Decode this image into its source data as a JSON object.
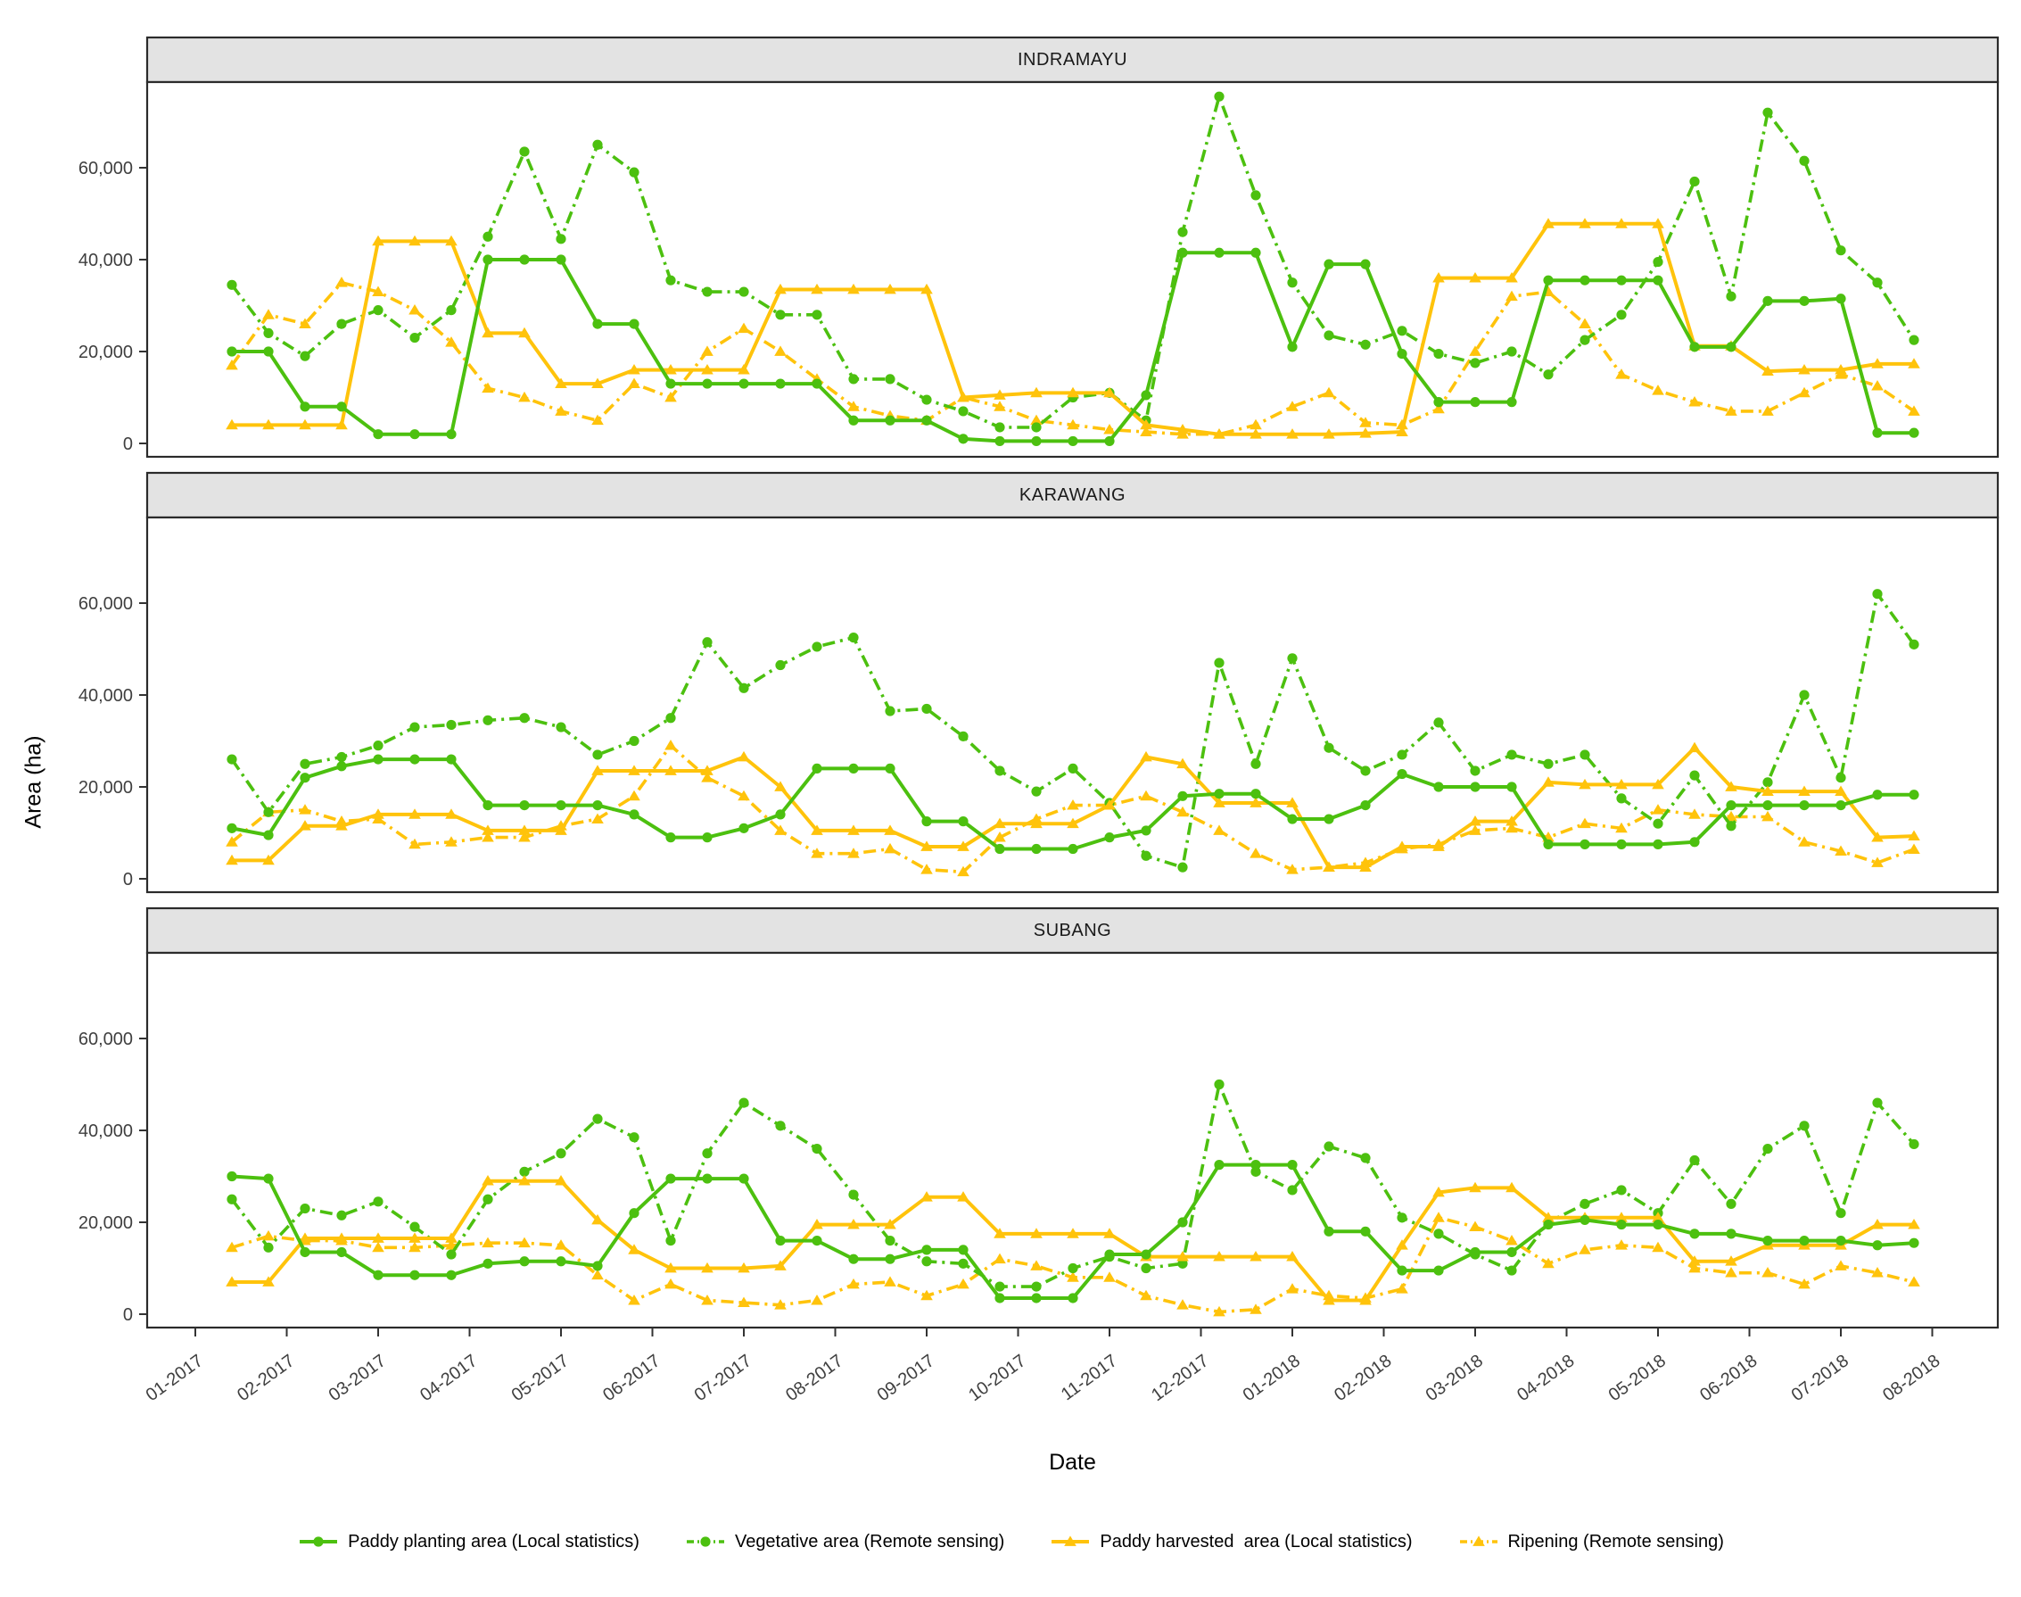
{
  "figure": {
    "y_axis_title": "Area (ha)",
    "x_axis_title": "Date"
  },
  "legend": {
    "position": "bottom",
    "items": [
      {
        "label": "Paddy planting area (Local statistics)",
        "series": "planting"
      },
      {
        "label": "Vegetative area (Remote sensing)",
        "series": "vegetative"
      },
      {
        "label": "Paddy harvested  area (Local statistics)",
        "series": "harvested"
      },
      {
        "label": "Ripening (Remote sensing)",
        "series": "ripening"
      }
    ]
  },
  "colors": {
    "green": "#4cc00f",
    "yellow": "#ffc30b",
    "strip_bg": "#e3e3e3",
    "panel_border": "#2b2b2b",
    "tick_text": "#3f3f3f",
    "axis_text": "#000000"
  },
  "chart_data": {
    "type": "line",
    "title": "",
    "xlabel": "Date",
    "ylabel": "Area (ha)",
    "grid": "off",
    "legend_position": "bottom",
    "x_unit": "months since 01-2017 tick (semi-monthly-ish cadence)",
    "x": [
      0.4,
      0.8,
      1.2,
      1.6,
      2.0,
      2.4,
      2.8,
      3.2,
      3.6,
      4.0,
      4.4,
      4.8,
      5.2,
      5.6,
      6.0,
      6.4,
      6.8,
      7.2,
      7.6,
      8.0,
      8.4,
      8.8,
      9.2,
      9.6,
      10.0,
      10.4,
      10.8,
      11.2,
      11.6,
      12.0,
      12.4,
      12.8,
      13.2,
      13.6,
      14.0,
      14.4,
      14.8,
      15.2,
      15.6,
      16.0,
      16.4,
      16.8,
      17.2,
      17.6,
      18.0,
      18.4,
      18.8
    ],
    "x_tick_positions": [
      0,
      1,
      2,
      3,
      4,
      5,
      6,
      7,
      8,
      9,
      10,
      11,
      12,
      13,
      14,
      15,
      16,
      17,
      18,
      19
    ],
    "x_tick_labels": [
      "01-2017",
      "02-2017",
      "03-2017",
      "04-2017",
      "05-2017",
      "06-2017",
      "07-2017",
      "08-2017",
      "09-2017",
      "10-2017",
      "11-2017",
      "12-2017",
      "01-2018",
      "02-2018",
      "03-2018",
      "04-2018",
      "05-2018",
      "06-2018",
      "07-2018",
      "08-2018"
    ],
    "yticks": [
      0,
      20000,
      40000,
      60000
    ],
    "ytick_labels": [
      "0",
      "20,000",
      "40,000",
      "60,000"
    ],
    "ylim": [
      0,
      78500
    ],
    "series_meta": [
      {
        "key": "planting",
        "label": "Paddy planting area (Local statistics)",
        "color_ref": "green",
        "line": "solid",
        "marker": "circle"
      },
      {
        "key": "vegetative",
        "label": "Vegetative area (Remote sensing)",
        "color_ref": "green",
        "line": "dashdot",
        "marker": "circle"
      },
      {
        "key": "harvested",
        "label": "Paddy harvested  area (Local statistics)",
        "color_ref": "yellow",
        "line": "solid",
        "marker": "triangle"
      },
      {
        "key": "ripening",
        "label": "Ripening (Remote sensing)",
        "color_ref": "yellow",
        "line": "dashdot",
        "marker": "triangle"
      }
    ],
    "facets": [
      {
        "title": "INDRAMAYU",
        "series": {
          "planting": [
            20000,
            20000,
            8000,
            8000,
            2000,
            2000,
            2000,
            40000,
            40000,
            40000,
            26000,
            26000,
            13000,
            13000,
            13000,
            13000,
            13000,
            5000,
            5000,
            5000,
            1000,
            500,
            500,
            500,
            500,
            10500,
            41500,
            41500,
            41500,
            21000,
            39000,
            39000,
            19500,
            9000,
            9000,
            9000,
            35500,
            35500,
            35500,
            35500,
            21000,
            21000,
            31000,
            31000,
            31500,
            2300,
            2300
          ],
          "vegetative": [
            34500,
            24000,
            19000,
            26000,
            29000,
            23000,
            29000,
            45000,
            63500,
            44500,
            65000,
            59000,
            35500,
            33000,
            33000,
            28000,
            28000,
            14000,
            14000,
            9500,
            7000,
            3500,
            3500,
            10000,
            11000,
            5000,
            46000,
            75500,
            54000,
            35000,
            23500,
            21500,
            24500,
            19500,
            17500,
            20000,
            15000,
            22500,
            28000,
            39500,
            57000,
            32000,
            72000,
            61500,
            42000,
            35000,
            22500
          ],
          "harvested": [
            4000,
            4000,
            4000,
            4000,
            44000,
            44000,
            44000,
            24000,
            24000,
            13000,
            13000,
            16000,
            16000,
            16000,
            16000,
            33500,
            33500,
            33500,
            33500,
            33500,
            10000,
            10500,
            11000,
            11000,
            11000,
            4000,
            3000,
            2000,
            2000,
            2000,
            2000,
            2200,
            2500,
            36000,
            36000,
            36000,
            47800,
            47800,
            47800,
            47800,
            21200,
            21200,
            15700,
            16000,
            16000,
            17300,
            17300
          ],
          "ripening": [
            17000,
            28000,
            26000,
            35000,
            33000,
            29000,
            22000,
            12000,
            10000,
            7000,
            5000,
            13000,
            10000,
            20000,
            25000,
            20000,
            14000,
            8000,
            6000,
            5000,
            10000,
            8000,
            5000,
            4000,
            3000,
            2500,
            2000,
            2000,
            4000,
            8000,
            11000,
            4500,
            4000,
            7500,
            20000,
            32000,
            33000,
            26000,
            15000,
            11500,
            9000,
            7000,
            7000,
            11000,
            15000,
            12500,
            7000
          ]
        }
      },
      {
        "title": "KARAWANG",
        "series": {
          "planting": [
            11000,
            9500,
            22000,
            24500,
            26000,
            26000,
            26000,
            16000,
            16000,
            16000,
            16000,
            14000,
            9000,
            9000,
            11000,
            14000,
            24000,
            24000,
            24000,
            12500,
            12500,
            6500,
            6500,
            6500,
            9000,
            10500,
            18000,
            18500,
            18500,
            13000,
            13000,
            16000,
            22800,
            20000,
            20000,
            20000,
            7500,
            7500,
            7500,
            7500,
            8000,
            16000,
            16000,
            16000,
            16000,
            18300,
            18300
          ],
          "vegetative": [
            26000,
            14500,
            25000,
            26500,
            29000,
            33000,
            33500,
            34500,
            35000,
            33000,
            27000,
            30000,
            35000,
            51500,
            41500,
            46500,
            50500,
            52500,
            36500,
            37000,
            31000,
            23500,
            19000,
            24000,
            16500,
            5000,
            2500,
            47000,
            25000,
            48000,
            28500,
            23500,
            27000,
            34000,
            23500,
            27000,
            25000,
            27000,
            17500,
            12000,
            22500,
            11500,
            21000,
            40000,
            22000,
            62000,
            51000
          ],
          "harvested": [
            4000,
            4000,
            11500,
            11500,
            14000,
            14000,
            14000,
            10500,
            10500,
            10500,
            23500,
            23500,
            23500,
            23500,
            26500,
            20000,
            10500,
            10500,
            10500,
            7000,
            7000,
            12000,
            12000,
            12000,
            16000,
            26500,
            25000,
            16500,
            16500,
            16500,
            2500,
            2500,
            7000,
            7000,
            12500,
            12500,
            21000,
            20500,
            20500,
            20500,
            28500,
            20000,
            19000,
            19000,
            19000,
            9000,
            9300
          ],
          "ripening": [
            8000,
            14500,
            15000,
            12500,
            13000,
            7500,
            8000,
            9000,
            9000,
            11500,
            13000,
            18000,
            29000,
            22000,
            18000,
            10500,
            5500,
            5500,
            6500,
            2000,
            1500,
            9000,
            13000,
            16000,
            16000,
            18000,
            14500,
            10500,
            5500,
            2000,
            2500,
            3500,
            6500,
            7500,
            10500,
            11000,
            9000,
            12000,
            11000,
            15000,
            14000,
            13500,
            13500,
            8000,
            6000,
            3500,
            6400
          ]
        }
      },
      {
        "title": "SUBANG",
        "series": {
          "planting": [
            30000,
            29500,
            13500,
            13500,
            8500,
            8500,
            8500,
            11000,
            11500,
            11500,
            10500,
            22000,
            29500,
            29500,
            29500,
            16000,
            16000,
            12000,
            12000,
            14000,
            14000,
            3500,
            3500,
            3500,
            13000,
            13000,
            20000,
            32500,
            32500,
            32500,
            18000,
            18000,
            9500,
            9500,
            13500,
            13500,
            19500,
            20500,
            19500,
            19500,
            17500,
            17500,
            16000,
            16000,
            16000,
            15000,
            15500
          ],
          "vegetative": [
            25000,
            14500,
            23000,
            21500,
            24500,
            19000,
            13000,
            25000,
            31000,
            35000,
            42500,
            38500,
            16000,
            35000,
            46000,
            41000,
            36000,
            26000,
            16000,
            11500,
            11000,
            6000,
            6000,
            10000,
            12500,
            10000,
            11000,
            50000,
            31000,
            27000,
            36500,
            34000,
            21000,
            17500,
            13000,
            9500,
            20000,
            24000,
            27000,
            22000,
            33500,
            24000,
            36000,
            41000,
            22000,
            46000,
            37000
          ],
          "harvested": [
            7000,
            7000,
            16500,
            16500,
            16500,
            16500,
            16500,
            29000,
            29000,
            29000,
            20500,
            14000,
            10000,
            10000,
            10000,
            10500,
            19500,
            19500,
            19500,
            25500,
            25500,
            17500,
            17500,
            17500,
            17500,
            12500,
            12500,
            12500,
            12500,
            12500,
            3000,
            3000,
            15000,
            26500,
            27500,
            27500,
            21000,
            21000,
            21000,
            21000,
            11500,
            11500,
            15000,
            15000,
            15000,
            19500,
            19500
          ],
          "ripening": [
            14500,
            17000,
            16000,
            16000,
            14500,
            14500,
            15000,
            15500,
            15500,
            15000,
            8500,
            3000,
            6500,
            3000,
            2500,
            2000,
            3000,
            6500,
            7000,
            4000,
            6500,
            12000,
            10500,
            8000,
            8000,
            4000,
            2000,
            500,
            1000,
            5500,
            4000,
            3500,
            5500,
            21000,
            19000,
            16000,
            11000,
            14000,
            15000,
            14500,
            10000,
            9000,
            9000,
            6500,
            10500,
            9000,
            7000
          ]
        }
      }
    ]
  }
}
